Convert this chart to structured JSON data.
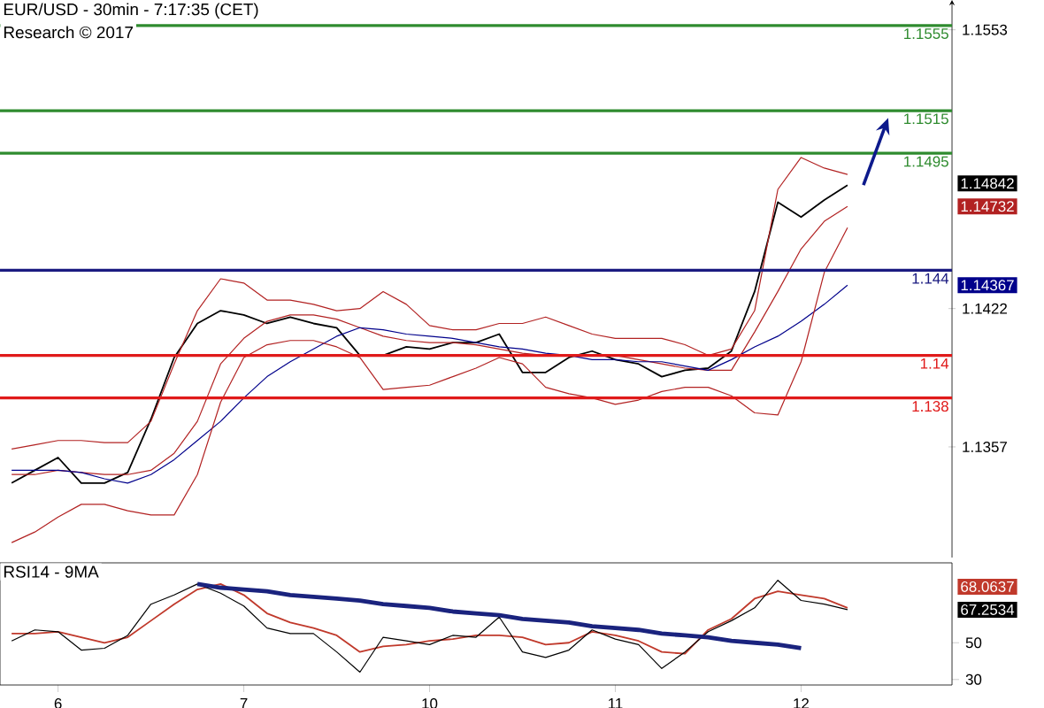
{
  "chart_data": [
    {
      "type": "line",
      "title": "EUR/USD - 30min - 7:17:35 (CET)",
      "subtitle": "Research © 2017",
      "categories": [
        null,
        null,
        null,
        null,
        null,
        null,
        null,
        null,
        null,
        null,
        null,
        null,
        null,
        null,
        null,
        null,
        null,
        null,
        null,
        null,
        null,
        null,
        null,
        null,
        null,
        null,
        null,
        null,
        null,
        null,
        null,
        null,
        null,
        null,
        null,
        null,
        null,
        null,
        null,
        null,
        null
      ],
      "ylim": [
        1.1305,
        1.1567
      ],
      "yticks": [
        1.1357,
        1.1422,
        1.1553
      ],
      "tick_labels": "y",
      "series": [
        {
          "color": "#000000",
          "values": [
            1.134,
            1.1346,
            1.1352,
            1.134,
            1.134,
            1.1345,
            1.137,
            1.1399,
            1.1415,
            1.1421,
            1.1419,
            1.1415,
            1.1418,
            1.1415,
            1.1413,
            1.14,
            1.14,
            1.1404,
            1.1403,
            1.1406,
            1.1406,
            1.141,
            1.1392,
            1.1392,
            1.1399,
            1.1402,
            1.1398,
            1.1396,
            1.139,
            1.1393,
            1.1394,
            1.1402,
            1.143,
            1.1472,
            1.1465,
            1.1473,
            1.148,
            null,
            null,
            null,
            null
          ]
        },
        {
          "color": "#b22222",
          "values": [
            1.1344,
            1.1344,
            1.1346,
            1.1345,
            1.1344,
            1.1344,
            1.1346,
            1.1354,
            1.1369,
            1.1396,
            1.1408,
            1.1416,
            1.1419,
            1.1419,
            1.1417,
            1.1413,
            1.1409,
            1.1407,
            1.1406,
            1.1406,
            1.1405,
            1.1403,
            1.1401,
            1.14,
            1.14,
            1.14,
            1.14,
            1.1398,
            1.1396,
            1.1394,
            1.1393,
            1.1393,
            1.1411,
            1.143,
            1.145,
            1.1463,
            1.147,
            null,
            null,
            null,
            null
          ]
        },
        {
          "color": "#00008b",
          "values": [
            1.1346,
            1.1346,
            1.1346,
            1.1345,
            1.1342,
            1.134,
            1.1344,
            1.1351,
            1.136,
            1.1369,
            1.138,
            1.139,
            1.1397,
            1.1403,
            1.1409,
            1.1413,
            1.1412,
            1.141,
            1.1409,
            1.1408,
            1.1406,
            1.1404,
            1.1403,
            1.1401,
            1.14,
            1.1398,
            1.1398,
            1.1397,
            1.1397,
            1.1395,
            1.1393,
            1.1398,
            1.1404,
            1.1409,
            1.1416,
            1.1424,
            1.1433,
            null,
            null,
            null,
            null
          ]
        },
        {
          "color": "#b22222",
          "values": [
            1.1356,
            1.1358,
            1.136,
            1.136,
            1.1359,
            1.1359,
            1.1369,
            1.1396,
            1.1421,
            1.1436,
            1.1434,
            1.1426,
            1.1426,
            1.1424,
            1.1421,
            1.1422,
            1.143,
            1.1424,
            1.1414,
            1.1412,
            1.1412,
            1.1415,
            1.1415,
            1.1418,
            1.1414,
            1.141,
            1.1408,
            1.1408,
            1.1408,
            1.1405,
            1.14,
            1.1403,
            1.1421,
            1.1478,
            1.1493,
            1.1488,
            1.1485,
            null,
            null,
            null,
            null
          ]
        },
        {
          "color": "#b22222",
          "values": [
            1.1312,
            1.1317,
            1.1324,
            1.133,
            1.133,
            1.1327,
            1.1325,
            1.1325,
            1.1344,
            1.1378,
            1.1399,
            1.1405,
            1.1407,
            1.1407,
            1.1404,
            1.1399,
            1.1384,
            1.1385,
            1.1386,
            1.139,
            1.1394,
            1.1399,
            1.1396,
            1.1385,
            1.1382,
            1.138,
            1.1377,
            1.1379,
            1.1383,
            1.1385,
            1.1385,
            1.1381,
            1.1373,
            1.1372,
            1.1397,
            1.1439,
            1.146,
            null,
            null,
            null,
            null
          ]
        }
      ],
      "ref_lines": [
        {
          "axis": "y",
          "value": 1.1555,
          "label": "1.1555",
          "color": "#2e8b2e"
        },
        {
          "axis": "y",
          "value": 1.1515,
          "label": "1.1515",
          "color": "#2e8b2e"
        },
        {
          "axis": "y",
          "value": 1.1495,
          "label": "1.1495",
          "color": "#2e8b2e"
        },
        {
          "axis": "y",
          "value": 1.144,
          "label": "1.144",
          "color": "#1a1a80"
        },
        {
          "axis": "y",
          "value": 1.14,
          "label": "1.14",
          "color": "#e01a1a"
        },
        {
          "axis": "y",
          "value": 1.138,
          "label": "1.138",
          "color": "#e01a1a"
        }
      ],
      "annotations": [
        "1.14842",
        "1.14732",
        "1.14367"
      ]
    },
    {
      "type": "line",
      "title": "RSI14 - 9MA",
      "categories": [
        null,
        null,
        "6",
        null,
        null,
        null,
        null,
        null,
        null,
        null,
        "7",
        null,
        null,
        null,
        null,
        null,
        null,
        null,
        "10",
        null,
        null,
        null,
        null,
        null,
        null,
        null,
        "11",
        null,
        null,
        null,
        null,
        null,
        null,
        null,
        "12",
        null,
        null,
        null,
        null,
        null,
        null
      ],
      "ylim": [
        27,
        93.5
      ],
      "yticks": [
        30,
        50
      ],
      "series": [
        {
          "color": "#c0392b",
          "values": [
            55,
            55,
            56,
            53,
            50,
            53,
            62,
            71,
            79,
            82,
            76,
            66,
            61,
            58,
            54,
            45,
            48,
            49,
            51,
            52,
            54,
            54,
            53,
            49,
            50,
            56,
            54,
            51,
            45,
            44,
            57,
            63,
            74,
            78,
            76,
            74,
            69,
            null,
            null,
            null,
            null
          ]
        },
        {
          "color": "#000000",
          "values": [
            51,
            57,
            56,
            46,
            47,
            54,
            71,
            76,
            82,
            77,
            70,
            58,
            55,
            55,
            45,
            34,
            53,
            51,
            49,
            54,
            53,
            64,
            45,
            42,
            46,
            57,
            52,
            49,
            36,
            45,
            56,
            62,
            69,
            84,
            73,
            71,
            68,
            null,
            null,
            null,
            null
          ]
        },
        {
          "color": "#1a237e",
          "values": [
            null,
            null,
            null,
            null,
            null,
            null,
            null,
            null,
            82,
            80,
            79,
            78,
            76,
            75,
            74,
            73,
            71,
            70,
            69,
            67,
            66,
            65,
            63,
            62,
            61,
            59,
            58,
            57,
            55,
            54,
            53,
            51,
            50,
            49,
            47,
            null,
            null,
            null,
            null,
            null,
            null
          ]
        }
      ],
      "annotations": [
        "68.0637",
        "67.2534"
      ]
    }
  ]
}
